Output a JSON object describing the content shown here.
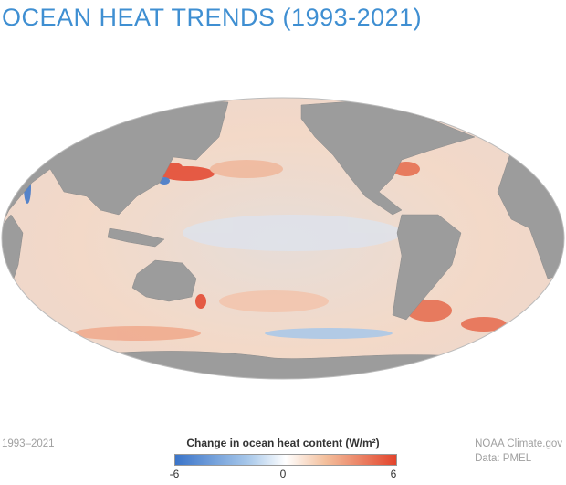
{
  "title": "OCEAN HEAT TRENDS (1993-2021)",
  "period": "1993–2021",
  "colorbar": {
    "title": "Change in ocean heat content (W/m²)",
    "min_label": "-6",
    "mid_label": "0",
    "max_label": "6",
    "colors": {
      "negative": "#3a74c9",
      "zero": "#ffffff",
      "positive": "#e3442c"
    }
  },
  "credit": {
    "source": "NOAA Climate.gov",
    "data": "Data: PMEL"
  },
  "map": {
    "projection": "Mollweide",
    "land_color": "#9c9c9c",
    "ocean_base_color": "#f2ddd2"
  }
}
